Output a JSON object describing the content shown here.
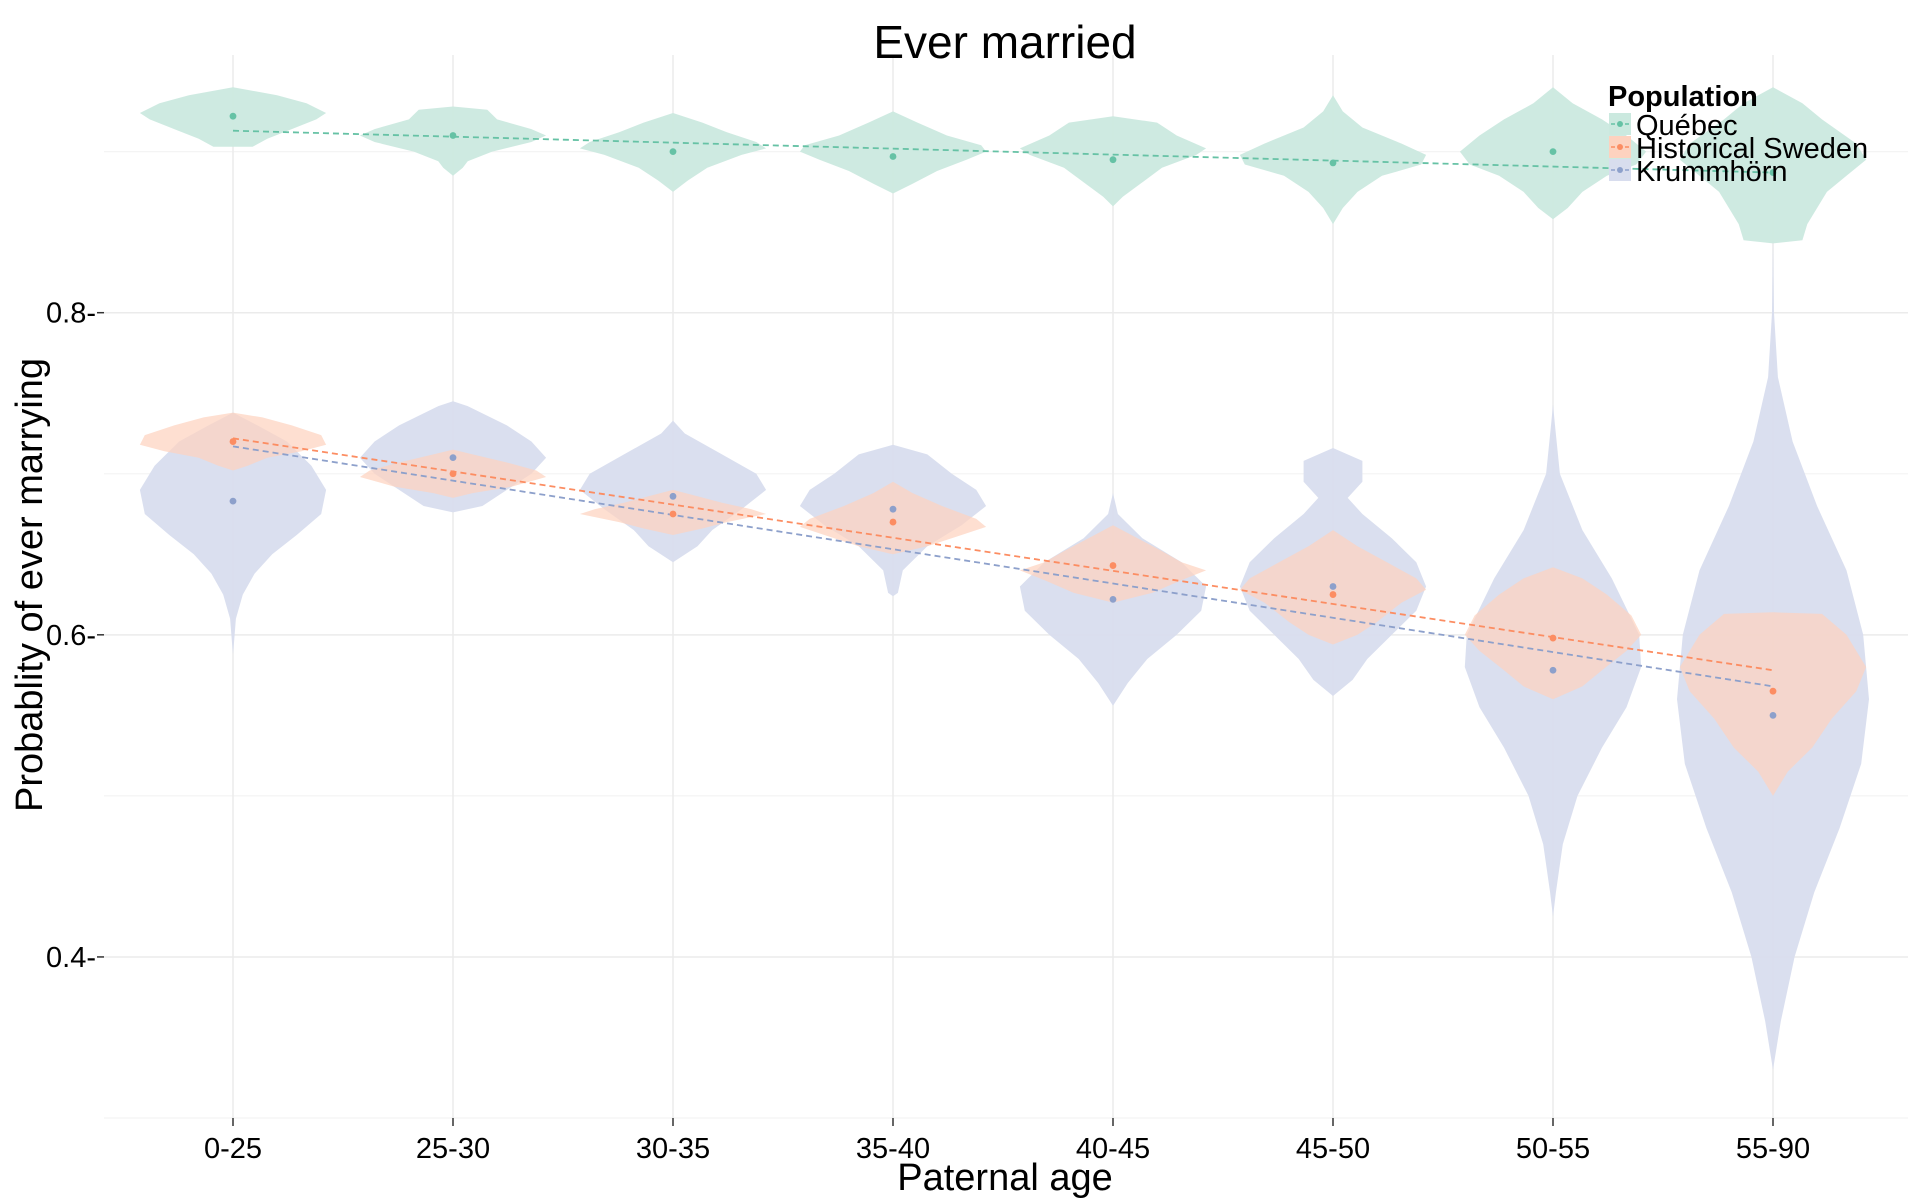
{
  "chart_data": {
    "type": "violin",
    "title": "Ever married",
    "xlabel": "Paternal age",
    "ylabel": "Probablity of ever marrying",
    "categories": [
      "0-25",
      "25-30",
      "30-35",
      "35-40",
      "40-45",
      "45-50",
      "50-55",
      "55-90"
    ],
    "ylim": [
      0.3,
      0.96
    ],
    "yticks": [
      0.4,
      0.6,
      0.8
    ],
    "ytick_labels": [
      "0.4-",
      "0.6-",
      "0.8-"
    ],
    "grid": true,
    "legend": {
      "title": "Population",
      "position": "top-right"
    },
    "series": [
      {
        "name": "Québec",
        "color": "#66c2a5",
        "fill": "#cbe9df",
        "values": [
          0.922,
          0.91,
          0.9,
          0.897,
          0.895,
          0.893,
          0.9,
          0.887
        ],
        "trend": [
          0.913,
          0.887
        ],
        "violins": [
          [
            [
              0.94,
              0.0
            ],
            [
              0.935,
              0.45
            ],
            [
              0.93,
              0.75
            ],
            [
              0.924,
              0.95
            ],
            [
              0.92,
              0.85
            ],
            [
              0.914,
              0.6
            ],
            [
              0.908,
              0.35
            ],
            [
              0.903,
              0.2
            ]
          ],
          [
            [
              0.928,
              0.0
            ],
            [
              0.926,
              0.35
            ],
            [
              0.92,
              0.45
            ],
            [
              0.914,
              0.8
            ],
            [
              0.91,
              0.95
            ],
            [
              0.906,
              0.8
            ],
            [
              0.9,
              0.4
            ],
            [
              0.894,
              0.15
            ],
            [
              0.89,
              0.1
            ],
            [
              0.885,
              0.0
            ]
          ],
          [
            [
              0.924,
              0.0
            ],
            [
              0.918,
              0.3
            ],
            [
              0.912,
              0.55
            ],
            [
              0.906,
              0.85
            ],
            [
              0.902,
              0.95
            ],
            [
              0.898,
              0.7
            ],
            [
              0.89,
              0.35
            ],
            [
              0.882,
              0.15
            ],
            [
              0.875,
              0.0
            ]
          ],
          [
            [
              0.925,
              0.0
            ],
            [
              0.918,
              0.25
            ],
            [
              0.91,
              0.55
            ],
            [
              0.904,
              0.9
            ],
            [
              0.9,
              0.95
            ],
            [
              0.895,
              0.75
            ],
            [
              0.888,
              0.45
            ],
            [
              0.88,
              0.2
            ],
            [
              0.874,
              0.0
            ]
          ],
          [
            [
              0.922,
              0.0
            ],
            [
              0.918,
              0.45
            ],
            [
              0.91,
              0.65
            ],
            [
              0.902,
              0.95
            ],
            [
              0.898,
              0.85
            ],
            [
              0.89,
              0.5
            ],
            [
              0.88,
              0.28
            ],
            [
              0.872,
              0.1
            ],
            [
              0.866,
              0.0
            ]
          ],
          [
            [
              0.935,
              0.0
            ],
            [
              0.925,
              0.1
            ],
            [
              0.915,
              0.3
            ],
            [
              0.905,
              0.7
            ],
            [
              0.898,
              0.95
            ],
            [
              0.892,
              0.9
            ],
            [
              0.885,
              0.5
            ],
            [
              0.875,
              0.25
            ],
            [
              0.865,
              0.1
            ],
            [
              0.855,
              0.0
            ]
          ],
          [
            [
              0.94,
              0.0
            ],
            [
              0.93,
              0.2
            ],
            [
              0.92,
              0.5
            ],
            [
              0.91,
              0.75
            ],
            [
              0.9,
              0.95
            ],
            [
              0.892,
              0.85
            ],
            [
              0.885,
              0.55
            ],
            [
              0.875,
              0.3
            ],
            [
              0.865,
              0.15
            ],
            [
              0.858,
              0.0
            ]
          ],
          [
            [
              0.94,
              0.0
            ],
            [
              0.93,
              0.3
            ],
            [
              0.92,
              0.5
            ],
            [
              0.905,
              0.85
            ],
            [
              0.895,
              0.95
            ],
            [
              0.885,
              0.75
            ],
            [
              0.875,
              0.55
            ],
            [
              0.865,
              0.45
            ],
            [
              0.855,
              0.35
            ],
            [
              0.845,
              0.3
            ],
            [
              0.843,
              0.0
            ]
          ]
        ]
      },
      {
        "name": "Historical Sweden",
        "color": "#fc8d62",
        "fill": "#fdd2bf",
        "values": [
          0.72,
          0.7,
          0.675,
          0.67,
          0.643,
          0.625,
          0.598,
          0.565
        ],
        "trend": [
          0.722,
          0.578
        ],
        "violins": [
          [
            [
              0.738,
              0.0
            ],
            [
              0.735,
              0.3
            ],
            [
              0.73,
              0.6
            ],
            [
              0.724,
              0.9
            ],
            [
              0.718,
              0.95
            ],
            [
              0.714,
              0.7
            ],
            [
              0.71,
              0.35
            ],
            [
              0.705,
              0.15
            ],
            [
              0.702,
              0.0
            ]
          ],
          [
            [
              0.715,
              0.0
            ],
            [
              0.712,
              0.2
            ],
            [
              0.707,
              0.55
            ],
            [
              0.702,
              0.85
            ],
            [
              0.698,
              0.95
            ],
            [
              0.692,
              0.6
            ],
            [
              0.688,
              0.2
            ],
            [
              0.685,
              0.0
            ]
          ],
          [
            [
              0.69,
              0.0
            ],
            [
              0.686,
              0.25
            ],
            [
              0.682,
              0.5
            ],
            [
              0.678,
              0.8
            ],
            [
              0.675,
              0.95
            ],
            [
              0.67,
              0.55
            ],
            [
              0.666,
              0.3
            ],
            [
              0.662,
              0.0
            ]
          ],
          [
            [
              0.695,
              0.0
            ],
            [
              0.688,
              0.2
            ],
            [
              0.68,
              0.5
            ],
            [
              0.672,
              0.85
            ],
            [
              0.667,
              0.95
            ],
            [
              0.662,
              0.7
            ],
            [
              0.655,
              0.35
            ],
            [
              0.65,
              0.0
            ]
          ],
          [
            [
              0.668,
              0.0
            ],
            [
              0.66,
              0.25
            ],
            [
              0.652,
              0.5
            ],
            [
              0.645,
              0.7
            ],
            [
              0.64,
              0.95
            ],
            [
              0.634,
              0.7
            ],
            [
              0.626,
              0.4
            ],
            [
              0.62,
              0.0
            ]
          ],
          [
            [
              0.665,
              0.0
            ],
            [
              0.655,
              0.25
            ],
            [
              0.645,
              0.55
            ],
            [
              0.635,
              0.85
            ],
            [
              0.628,
              0.95
            ],
            [
              0.62,
              0.7
            ],
            [
              0.608,
              0.45
            ],
            [
              0.6,
              0.25
            ],
            [
              0.594,
              0.0
            ]
          ],
          [
            [
              0.642,
              0.0
            ],
            [
              0.635,
              0.3
            ],
            [
              0.625,
              0.55
            ],
            [
              0.612,
              0.8
            ],
            [
              0.6,
              0.9
            ],
            [
              0.59,
              0.75
            ],
            [
              0.578,
              0.5
            ],
            [
              0.568,
              0.3
            ],
            [
              0.56,
              0.0
            ]
          ],
          [
            [
              0.614,
              0.0
            ],
            [
              0.613,
              0.5
            ],
            [
              0.6,
              0.75
            ],
            [
              0.58,
              0.95
            ],
            [
              0.565,
              0.85
            ],
            [
              0.548,
              0.6
            ],
            [
              0.53,
              0.4
            ],
            [
              0.515,
              0.15
            ],
            [
              0.5,
              0.0
            ]
          ]
        ]
      },
      {
        "name": "Krummhörn",
        "color": "#8da0cb",
        "fill": "#d8ddee",
        "values": [
          0.683,
          0.71,
          0.686,
          0.678,
          0.622,
          0.63,
          0.578,
          0.55
        ],
        "trend": [
          0.717,
          0.568
        ],
        "violins": [
          [
            [
              0.738,
              0.0
            ],
            [
              0.73,
              0.25
            ],
            [
              0.72,
              0.55
            ],
            [
              0.705,
              0.8
            ],
            [
              0.69,
              0.95
            ],
            [
              0.675,
              0.9
            ],
            [
              0.662,
              0.65
            ],
            [
              0.65,
              0.4
            ],
            [
              0.638,
              0.22
            ],
            [
              0.625,
              0.1
            ],
            [
              0.61,
              0.03
            ],
            [
              0.595,
              0.01
            ],
            [
              0.588,
              0.0
            ]
          ],
          [
            [
              0.745,
              0.0
            ],
            [
              0.742,
              0.15
            ],
            [
              0.73,
              0.55
            ],
            [
              0.72,
              0.8
            ],
            [
              0.71,
              0.95
            ],
            [
              0.7,
              0.8
            ],
            [
              0.69,
              0.55
            ],
            [
              0.68,
              0.3
            ],
            [
              0.676,
              0.0
            ]
          ],
          [
            [
              0.733,
              0.0
            ],
            [
              0.725,
              0.12
            ],
            [
              0.712,
              0.5
            ],
            [
              0.7,
              0.85
            ],
            [
              0.69,
              0.95
            ],
            [
              0.678,
              0.7
            ],
            [
              0.665,
              0.4
            ],
            [
              0.655,
              0.25
            ],
            [
              0.645,
              0.0
            ]
          ],
          [
            [
              0.718,
              0.0
            ],
            [
              0.712,
              0.35
            ],
            [
              0.7,
              0.6
            ],
            [
              0.69,
              0.85
            ],
            [
              0.68,
              0.95
            ],
            [
              0.668,
              0.7
            ],
            [
              0.655,
              0.35
            ],
            [
              0.64,
              0.1
            ],
            [
              0.626,
              0.05
            ],
            [
              0.624,
              0.0
            ]
          ],
          [
            [
              0.688,
              0.0
            ],
            [
              0.675,
              0.05
            ],
            [
              0.66,
              0.3
            ],
            [
              0.645,
              0.7
            ],
            [
              0.63,
              0.95
            ],
            [
              0.615,
              0.9
            ],
            [
              0.6,
              0.65
            ],
            [
              0.585,
              0.35
            ],
            [
              0.57,
              0.15
            ],
            [
              0.556,
              0.0
            ]
          ],
          [
            [
              0.716,
              0.0
            ],
            [
              0.708,
              0.3
            ],
            [
              0.695,
              0.3
            ],
            [
              0.685,
              0.15
            ],
            [
              0.675,
              0.3
            ],
            [
              0.66,
              0.6
            ],
            [
              0.645,
              0.85
            ],
            [
              0.63,
              0.95
            ],
            [
              0.615,
              0.85
            ],
            [
              0.6,
              0.6
            ],
            [
              0.585,
              0.35
            ],
            [
              0.572,
              0.2
            ],
            [
              0.562,
              0.0
            ]
          ],
          [
            [
              0.743,
              0.0
            ],
            [
              0.73,
              0.02
            ],
            [
              0.7,
              0.07
            ],
            [
              0.665,
              0.3
            ],
            [
              0.635,
              0.6
            ],
            [
              0.6,
              0.88
            ],
            [
              0.58,
              0.9
            ],
            [
              0.555,
              0.75
            ],
            [
              0.53,
              0.5
            ],
            [
              0.5,
              0.25
            ],
            [
              0.47,
              0.1
            ],
            [
              0.44,
              0.03
            ],
            [
              0.425,
              0.0
            ]
          ],
          [
            [
              0.845,
              0.0
            ],
            [
              0.8,
              0.01
            ],
            [
              0.76,
              0.05
            ],
            [
              0.72,
              0.2
            ],
            [
              0.68,
              0.45
            ],
            [
              0.64,
              0.75
            ],
            [
              0.6,
              0.92
            ],
            [
              0.56,
              0.98
            ],
            [
              0.52,
              0.9
            ],
            [
              0.48,
              0.68
            ],
            [
              0.44,
              0.42
            ],
            [
              0.4,
              0.22
            ],
            [
              0.36,
              0.08
            ],
            [
              0.33,
              0.0
            ]
          ]
        ]
      }
    ]
  }
}
